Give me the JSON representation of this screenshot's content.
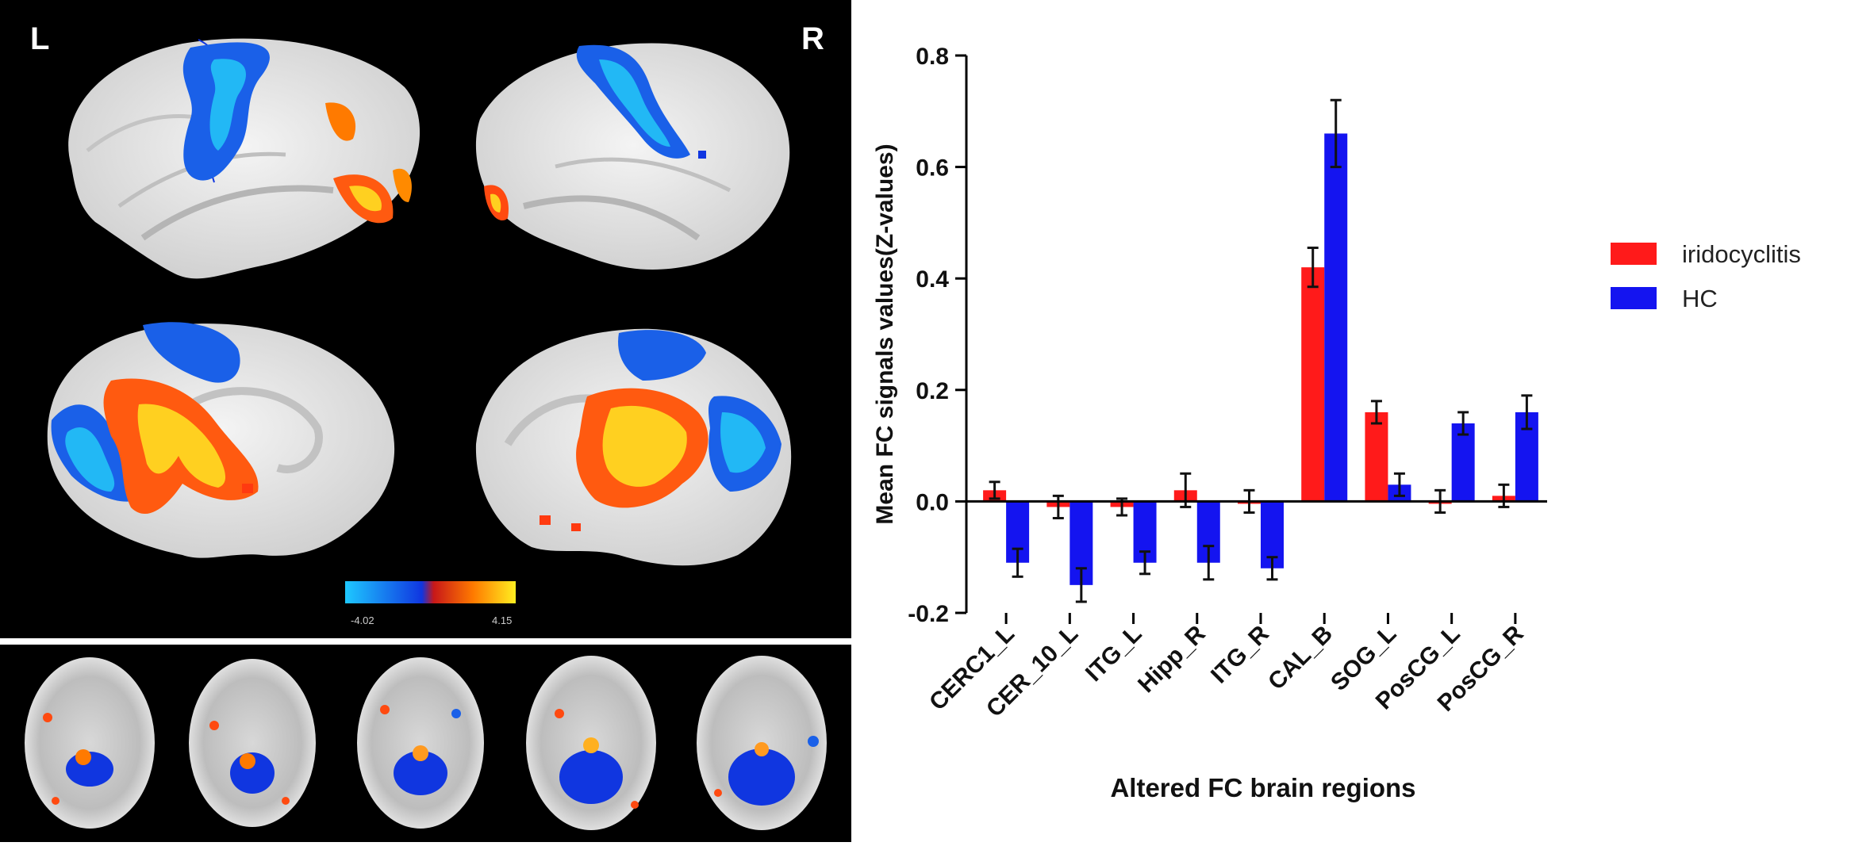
{
  "brain_figure": {
    "left_label": "L",
    "right_label": "R",
    "colorbar": {
      "min_label": "-4.02",
      "max_label": "4.15",
      "colors": [
        "#1ec8ff",
        "#1036e0",
        "#c81818",
        "#ff7a00",
        "#ffee20"
      ]
    },
    "axial_slice_count": 5
  },
  "chart_data": {
    "type": "bar",
    "title": "",
    "xlabel": "Altered FC brain regions",
    "ylabel": "Mean FC signals values(Z-values)",
    "ylim": [
      -0.2,
      0.8
    ],
    "yticks": [
      "-0.2",
      "0.0",
      "0.2",
      "0.4",
      "0.6",
      "0.8"
    ],
    "ytick_values": [
      -0.2,
      0.0,
      0.2,
      0.4,
      0.6,
      0.8
    ],
    "categories": [
      "CERC1_L",
      "CER_10_L",
      "ITG_L",
      "Hipp_R",
      "ITG_R",
      "CAL_B",
      "SOG_L",
      "PosCG_L",
      "PosCG_R"
    ],
    "series": [
      {
        "name": "iridocyclitis",
        "color": "#ff1a1a",
        "values": [
          0.02,
          -0.01,
          -0.01,
          0.02,
          0.0,
          0.42,
          0.16,
          0.0,
          0.01
        ],
        "errors": [
          0.015,
          0.02,
          0.015,
          0.03,
          0.02,
          0.035,
          0.02,
          0.02,
          0.02
        ]
      },
      {
        "name": "HC",
        "color": "#1414f0",
        "values": [
          -0.11,
          -0.15,
          -0.11,
          -0.11,
          -0.12,
          0.66,
          0.03,
          0.14,
          0.16
        ],
        "errors": [
          0.025,
          0.03,
          0.02,
          0.03,
          0.02,
          0.06,
          0.02,
          0.02,
          0.03
        ]
      }
    ],
    "legend_position": "right",
    "grid": false
  }
}
